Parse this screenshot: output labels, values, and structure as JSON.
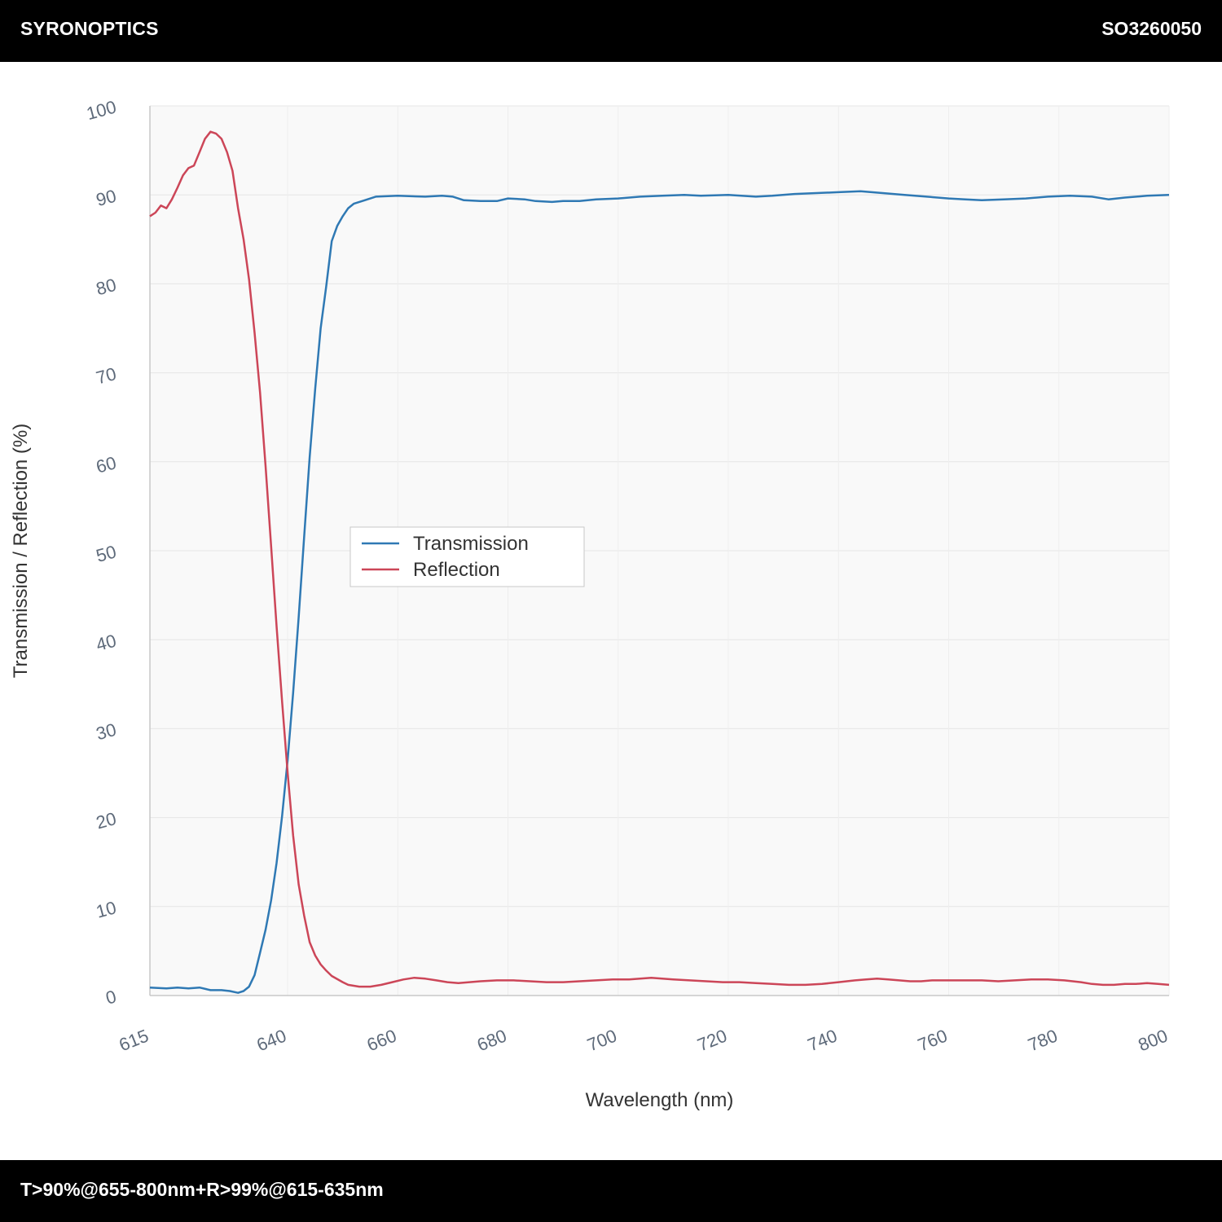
{
  "header": {
    "brand": "SYRONOPTICS",
    "part_number": "SO3260050"
  },
  "footer": {
    "spec": "T>90%@655-800nm+R>99%@615-635nm"
  },
  "colors": {
    "transmission": "#2f79b4",
    "reflection": "#cc4658",
    "plot_bg": "#f9f9f9",
    "grid": "#e6e6e6"
  },
  "chart_data": {
    "type": "line",
    "xlabel": "Wavelength (nm)",
    "ylabel": "Transmission / Reflection (%)",
    "xlim": [
      615,
      800
    ],
    "ylim": [
      0,
      100
    ],
    "x_ticks": [
      615,
      640,
      660,
      680,
      700,
      720,
      740,
      760,
      780,
      800
    ],
    "y_ticks": [
      0,
      10,
      20,
      30,
      40,
      50,
      60,
      70,
      80,
      90,
      100
    ],
    "grid": true,
    "legend_position": "center",
    "series": [
      {
        "name": "Transmission",
        "color": "#2f79b4",
        "points": [
          [
            615,
            0.9
          ],
          [
            618,
            0.8
          ],
          [
            620,
            0.9
          ],
          [
            622,
            0.8
          ],
          [
            624,
            0.9
          ],
          [
            626,
            0.6
          ],
          [
            628,
            0.6
          ],
          [
            629.5,
            0.5
          ],
          [
            631,
            0.3
          ],
          [
            632,
            0.5
          ],
          [
            633,
            1.0
          ],
          [
            634,
            2.3
          ],
          [
            635,
            4.8
          ],
          [
            636,
            7.4
          ],
          [
            637,
            10.7
          ],
          [
            638,
            14.9
          ],
          [
            639,
            20.2
          ],
          [
            640,
            26.5
          ],
          [
            641,
            34.0
          ],
          [
            642,
            42.5
          ],
          [
            643,
            51.5
          ],
          [
            644,
            60.5
          ],
          [
            645,
            68.2
          ],
          [
            646,
            75.0
          ],
          [
            647,
            79.7
          ],
          [
            648,
            84.8
          ],
          [
            649,
            86.5
          ],
          [
            650,
            87.6
          ],
          [
            651,
            88.5
          ],
          [
            652,
            89.0
          ],
          [
            654,
            89.4
          ],
          [
            656,
            89.8
          ],
          [
            660,
            89.9
          ],
          [
            665,
            89.8
          ],
          [
            668,
            89.9
          ],
          [
            670,
            89.8
          ],
          [
            672,
            89.4
          ],
          [
            675,
            89.3
          ],
          [
            678,
            89.3
          ],
          [
            680,
            89.6
          ],
          [
            683,
            89.5
          ],
          [
            685,
            89.3
          ],
          [
            688,
            89.2
          ],
          [
            690,
            89.3
          ],
          [
            693,
            89.3
          ],
          [
            696,
            89.5
          ],
          [
            700,
            89.6
          ],
          [
            704,
            89.8
          ],
          [
            708,
            89.9
          ],
          [
            712,
            90.0
          ],
          [
            715,
            89.9
          ],
          [
            720,
            90.0
          ],
          [
            725,
            89.8
          ],
          [
            728,
            89.9
          ],
          [
            732,
            90.1
          ],
          [
            736,
            90.2
          ],
          [
            740,
            90.3
          ],
          [
            744,
            90.4
          ],
          [
            748,
            90.2
          ],
          [
            752,
            90.0
          ],
          [
            756,
            89.8
          ],
          [
            760,
            89.6
          ],
          [
            763,
            89.5
          ],
          [
            766,
            89.4
          ],
          [
            770,
            89.5
          ],
          [
            774,
            89.6
          ],
          [
            778,
            89.8
          ],
          [
            782,
            89.9
          ],
          [
            786,
            89.8
          ],
          [
            789,
            89.5
          ],
          [
            792,
            89.7
          ],
          [
            796,
            89.9
          ],
          [
            800,
            90.0
          ]
        ]
      },
      {
        "name": "Reflection",
        "color": "#cc4658",
        "points": [
          [
            615,
            87.6
          ],
          [
            616,
            88.0
          ],
          [
            617,
            88.8
          ],
          [
            618,
            88.5
          ],
          [
            619,
            89.5
          ],
          [
            620,
            90.8
          ],
          [
            621,
            92.2
          ],
          [
            622,
            93.0
          ],
          [
            623,
            93.3
          ],
          [
            624,
            94.8
          ],
          [
            625,
            96.3
          ],
          [
            626,
            97.1
          ],
          [
            627,
            96.9
          ],
          [
            628,
            96.3
          ],
          [
            629,
            94.8
          ],
          [
            630,
            92.7
          ],
          [
            631,
            88.5
          ],
          [
            632,
            85.0
          ],
          [
            633,
            80.5
          ],
          [
            634,
            74.5
          ],
          [
            635,
            67.8
          ],
          [
            636,
            59.5
          ],
          [
            637,
            50.5
          ],
          [
            638,
            41.5
          ],
          [
            639,
            33.0
          ],
          [
            640,
            25.0
          ],
          [
            641,
            18.0
          ],
          [
            642,
            12.5
          ],
          [
            643,
            9.0
          ],
          [
            644,
            6.0
          ],
          [
            645,
            4.5
          ],
          [
            646,
            3.5
          ],
          [
            647,
            2.8
          ],
          [
            648,
            2.2
          ],
          [
            650,
            1.5
          ],
          [
            651,
            1.2
          ],
          [
            653,
            1.0
          ],
          [
            655,
            1.0
          ],
          [
            657,
            1.2
          ],
          [
            659,
            1.5
          ],
          [
            661,
            1.8
          ],
          [
            663,
            2.0
          ],
          [
            665,
            1.9
          ],
          [
            667,
            1.7
          ],
          [
            669,
            1.5
          ],
          [
            671,
            1.4
          ],
          [
            673,
            1.5
          ],
          [
            675,
            1.6
          ],
          [
            678,
            1.7
          ],
          [
            681,
            1.7
          ],
          [
            684,
            1.6
          ],
          [
            687,
            1.5
          ],
          [
            690,
            1.5
          ],
          [
            693,
            1.6
          ],
          [
            696,
            1.7
          ],
          [
            699,
            1.8
          ],
          [
            702,
            1.8
          ],
          [
            704,
            1.9
          ],
          [
            706,
            2.0
          ],
          [
            708,
            1.9
          ],
          [
            710,
            1.8
          ],
          [
            713,
            1.7
          ],
          [
            716,
            1.6
          ],
          [
            719,
            1.5
          ],
          [
            722,
            1.5
          ],
          [
            725,
            1.4
          ],
          [
            728,
            1.3
          ],
          [
            731,
            1.2
          ],
          [
            734,
            1.2
          ],
          [
            737,
            1.3
          ],
          [
            740,
            1.5
          ],
          [
            743,
            1.7
          ],
          [
            745,
            1.8
          ],
          [
            747,
            1.9
          ],
          [
            749,
            1.8
          ],
          [
            751,
            1.7
          ],
          [
            753,
            1.6
          ],
          [
            755,
            1.6
          ],
          [
            757,
            1.7
          ],
          [
            760,
            1.7
          ],
          [
            763,
            1.7
          ],
          [
            766,
            1.7
          ],
          [
            769,
            1.6
          ],
          [
            772,
            1.7
          ],
          [
            775,
            1.8
          ],
          [
            778,
            1.8
          ],
          [
            781,
            1.7
          ],
          [
            784,
            1.5
          ],
          [
            786,
            1.3
          ],
          [
            788,
            1.2
          ],
          [
            790,
            1.2
          ],
          [
            792,
            1.3
          ],
          [
            794,
            1.3
          ],
          [
            796,
            1.4
          ],
          [
            798,
            1.3
          ],
          [
            800,
            1.2
          ]
        ]
      }
    ]
  }
}
